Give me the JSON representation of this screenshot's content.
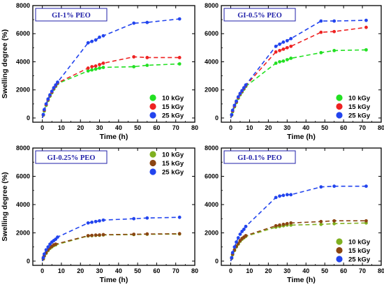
{
  "chart_data": [
    {
      "type": "scatter",
      "title": "GI-1% PEO",
      "xlabel": "Time (h)",
      "ylabel": "Swelling degree (%)",
      "xlim": [
        -5,
        80
      ],
      "ylim": [
        -300,
        8000
      ],
      "xticks": [
        "0",
        "10",
        "20",
        "30",
        "40",
        "50",
        "60",
        "70",
        "80"
      ],
      "yticks": [
        "0",
        "2000",
        "4000",
        "6000",
        "8000"
      ],
      "legend_position": "bottom-right",
      "series": [
        {
          "name": "10 kGy",
          "color": "#22e022",
          "x": [
            0.5,
            1,
            2,
            3,
            4,
            5,
            6,
            7,
            8,
            24,
            26,
            28,
            30,
            32,
            48,
            55,
            72
          ],
          "y": [
            200,
            500,
            900,
            1250,
            1550,
            1800,
            2050,
            2250,
            2450,
            3350,
            3420,
            3480,
            3550,
            3600,
            3650,
            3750,
            3850
          ]
        },
        {
          "name": "15 kGy",
          "color": "#ee2222",
          "x": [
            0.5,
            1,
            2,
            3,
            4,
            5,
            6,
            7,
            8,
            24,
            26,
            28,
            30,
            32,
            48,
            55,
            72
          ],
          "y": [
            220,
            550,
            950,
            1300,
            1600,
            1850,
            2100,
            2300,
            2500,
            3550,
            3650,
            3700,
            3800,
            3900,
            4350,
            4300,
            4300
          ]
        },
        {
          "name": "25 kGy",
          "color": "#2244ee",
          "x": [
            0.5,
            1,
            2,
            3,
            4,
            5,
            6,
            7,
            8,
            24,
            26,
            28,
            30,
            32,
            48,
            55,
            72
          ],
          "y": [
            250,
            600,
            1000,
            1350,
            1650,
            1900,
            2150,
            2350,
            2550,
            5350,
            5450,
            5550,
            5750,
            5850,
            6750,
            6800,
            7050
          ]
        }
      ]
    },
    {
      "type": "scatter",
      "title": "GI-0.5% PEO",
      "xlabel": "Time (h)",
      "ylabel": "",
      "xlim": [
        -5,
        80
      ],
      "ylim": [
        -300,
        8000
      ],
      "xticks": [
        "0",
        "10",
        "20",
        "30",
        "40",
        "50",
        "60",
        "70",
        "80"
      ],
      "yticks": [
        "0",
        "2000",
        "4000",
        "6000",
        "8000"
      ],
      "legend_position": "bottom-right",
      "series": [
        {
          "name": "10 kGy",
          "color": "#22e022",
          "x": [
            0.5,
            1,
            2,
            3,
            4,
            5,
            6,
            7,
            8,
            24,
            26,
            28,
            30,
            32,
            48,
            55,
            72
          ],
          "y": [
            200,
            450,
            800,
            1100,
            1400,
            1650,
            1850,
            2050,
            2250,
            3900,
            4000,
            4050,
            4150,
            4250,
            4650,
            4800,
            4850
          ]
        },
        {
          "name": "15 kGy",
          "color": "#ee2222",
          "x": [
            0.5,
            1,
            2,
            3,
            4,
            5,
            6,
            7,
            8,
            24,
            26,
            28,
            30,
            32,
            48,
            55,
            72
          ],
          "y": [
            220,
            500,
            850,
            1150,
            1450,
            1700,
            1900,
            2100,
            2300,
            4700,
            4800,
            4900,
            5000,
            5100,
            6100,
            6150,
            6450
          ]
        },
        {
          "name": "25 kGy",
          "color": "#2244ee",
          "x": [
            0.5,
            1,
            2,
            3,
            4,
            5,
            6,
            7,
            8,
            24,
            26,
            28,
            30,
            32,
            48,
            55,
            72
          ],
          "y": [
            240,
            550,
            900,
            1200,
            1500,
            1750,
            1950,
            2150,
            2350,
            5100,
            5250,
            5400,
            5500,
            5650,
            6900,
            6900,
            6950
          ]
        }
      ]
    },
    {
      "type": "scatter",
      "title": "GI-0.25% PEO",
      "xlabel": "Time (h)",
      "ylabel": "Swelling degree (%)",
      "xlim": [
        -5,
        80
      ],
      "ylim": [
        -300,
        8000
      ],
      "xticks": [
        "0",
        "10",
        "20",
        "30",
        "40",
        "50",
        "60",
        "70",
        "80"
      ],
      "yticks": [
        "0",
        "2000",
        "4000",
        "6000",
        "8000"
      ],
      "legend_position": "top-right",
      "series": [
        {
          "name": "10 kGy",
          "color": "#7fb020",
          "x": [
            0.5,
            1,
            2,
            3,
            4,
            5,
            6,
            7,
            24,
            26,
            28,
            30,
            32,
            48,
            55,
            72
          ],
          "y": [
            150,
            350,
            550,
            750,
            900,
            1000,
            1100,
            1150,
            1780,
            1800,
            1820,
            1830,
            1850,
            1880,
            1900,
            1920
          ]
        },
        {
          "name": "15 kGy",
          "color": "#8b4513",
          "x": [
            0.5,
            1,
            2,
            3,
            4,
            5,
            6,
            7,
            24,
            26,
            28,
            30,
            32,
            48,
            55,
            72
          ],
          "y": [
            170,
            380,
            600,
            800,
            950,
            1050,
            1150,
            1200,
            1800,
            1820,
            1840,
            1850,
            1870,
            1900,
            1920,
            1940
          ]
        },
        {
          "name": "25 kGy",
          "color": "#2244ee",
          "x": [
            0.5,
            1,
            2,
            3,
            4,
            5,
            6,
            7,
            8,
            24,
            26,
            28,
            30,
            32,
            48,
            55,
            72
          ],
          "y": [
            250,
            500,
            800,
            1000,
            1200,
            1350,
            1450,
            1550,
            1700,
            2700,
            2750,
            2800,
            2850,
            2900,
            3000,
            3050,
            3100
          ]
        }
      ]
    },
    {
      "type": "scatter",
      "title": "GI-0.1% PEO",
      "xlabel": "Time (h)",
      "ylabel": "",
      "xlim": [
        -5,
        80
      ],
      "ylim": [
        -300,
        8000
      ],
      "xticks": [
        "0",
        "10",
        "20",
        "30",
        "40",
        "50",
        "60",
        "70",
        "80"
      ],
      "yticks": [
        "0",
        "2000",
        "4000",
        "6000",
        "8000"
      ],
      "legend_position": "bottom-right",
      "series": [
        {
          "name": "10 kGy",
          "color": "#7fb020",
          "x": [
            0.5,
            1,
            2,
            3,
            4,
            5,
            6,
            7,
            8,
            24,
            26,
            28,
            30,
            32,
            48,
            55,
            72
          ],
          "y": [
            200,
            450,
            750,
            1000,
            1200,
            1400,
            1550,
            1650,
            1750,
            2400,
            2450,
            2500,
            2550,
            2550,
            2600,
            2650,
            2700
          ]
        },
        {
          "name": "15 kGy",
          "color": "#8b4513",
          "x": [
            0.5,
            1,
            2,
            3,
            4,
            5,
            6,
            7,
            8,
            24,
            26,
            28,
            30,
            32,
            48,
            55,
            72
          ],
          "y": [
            220,
            500,
            800,
            1050,
            1250,
            1450,
            1600,
            1700,
            1800,
            2500,
            2550,
            2600,
            2650,
            2700,
            2800,
            2850,
            2850
          ]
        },
        {
          "name": "25 kGy",
          "color": "#2244ee",
          "x": [
            0.5,
            1,
            2,
            3,
            4,
            5,
            6,
            7,
            8,
            24,
            26,
            28,
            30,
            32,
            48,
            55,
            72
          ],
          "y": [
            250,
            600,
            1000,
            1350,
            1650,
            1900,
            2100,
            2250,
            2450,
            4500,
            4600,
            4650,
            4700,
            4700,
            5250,
            5300,
            5300
          ]
        }
      ]
    }
  ]
}
